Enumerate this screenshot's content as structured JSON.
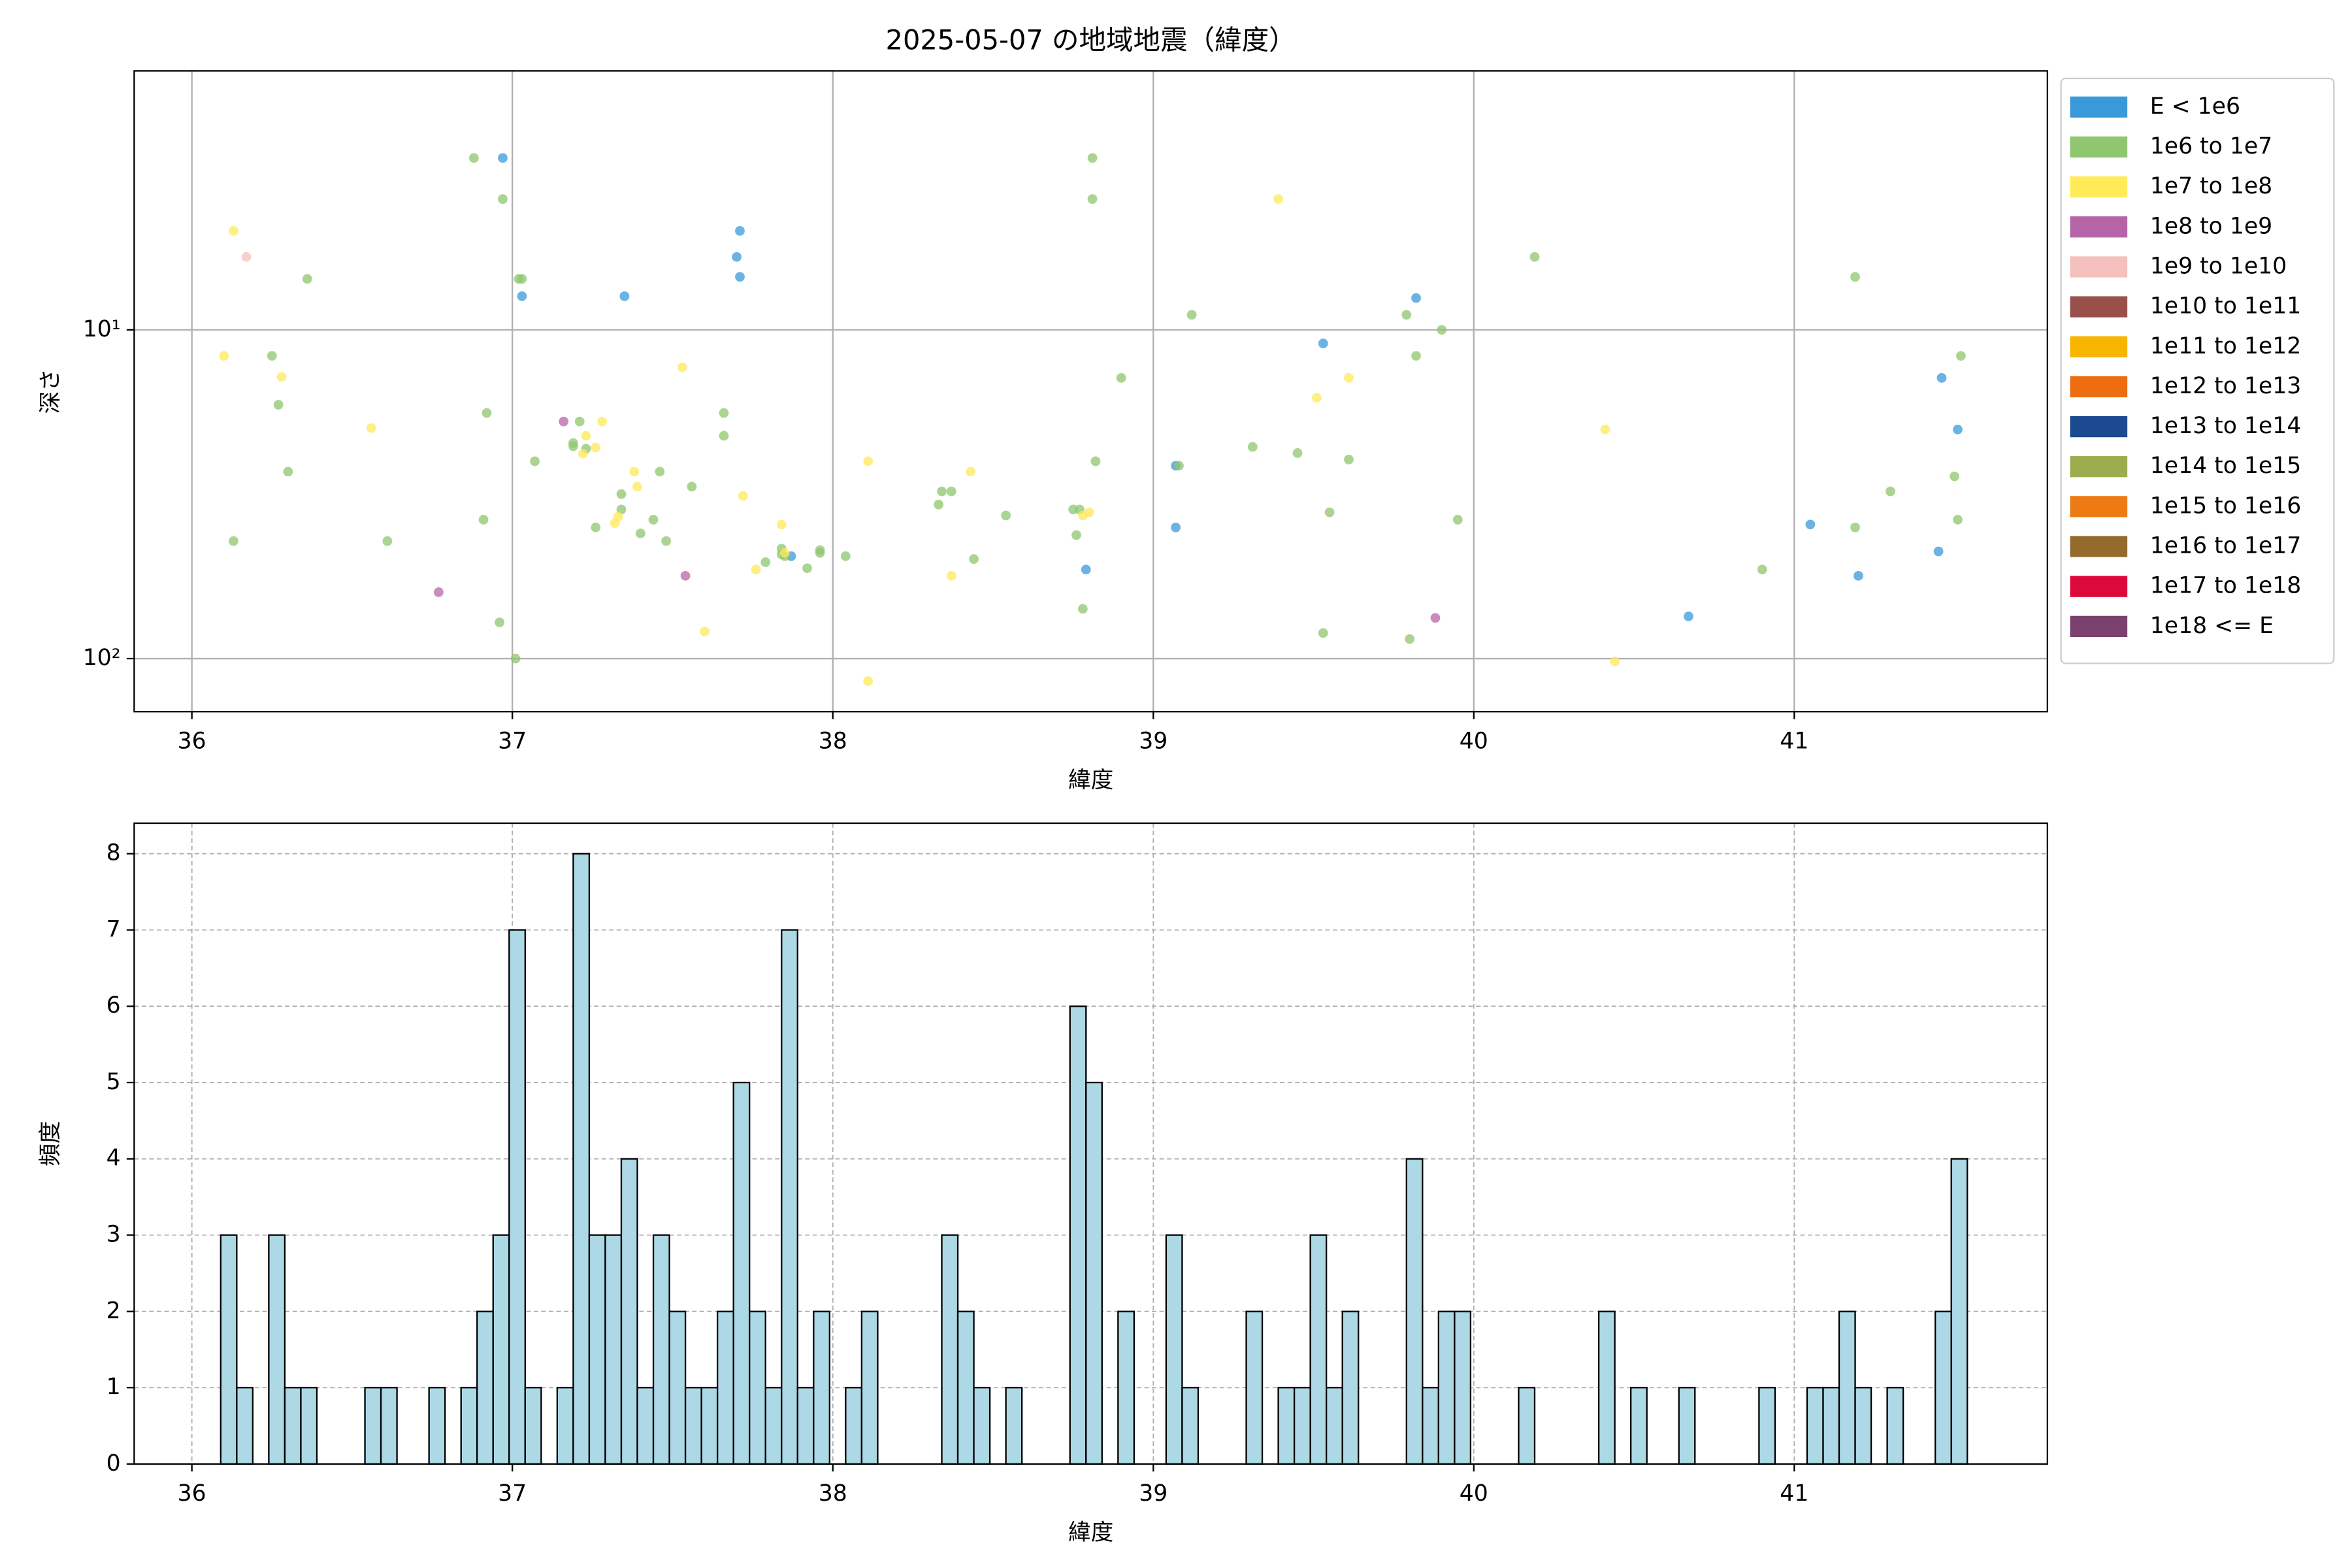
{
  "chart_data": [
    {
      "type": "scatter",
      "title": "2025-05-07 の地域地震（緯度）",
      "xlabel": "緯度",
      "ylabel": "深さ",
      "xlim": [
        35.82,
        41.79
      ],
      "xticks": [
        36,
        37,
        38,
        39,
        40,
        41
      ],
      "ylim": [
        1.63,
        145
      ],
      "yscale": "log",
      "y_inverted": true,
      "yticks": [
        {
          "value": 10,
          "label": "10¹"
        },
        {
          "value": 100,
          "label": "10²"
        }
      ],
      "grid": true,
      "legend": "outside right",
      "series": [
        {
          "name": "E < 1e6",
          "color": "#3a9ad9",
          "x": [
            36.97,
            37.03,
            37.35,
            37.71,
            37.7,
            37.71,
            37.87,
            38.79,
            39.07,
            39.07,
            39.53,
            39.82,
            40.67,
            41.05,
            41.2,
            41.45,
            41.46,
            41.51
          ],
          "values": [
            3.0,
            7.9,
            7.9,
            5.0,
            6.0,
            6.9,
            48.8,
            53.6,
            25.9,
            39.9,
            11.0,
            8.0,
            74.4,
            39.1,
            56.0,
            47.2,
            14.0,
            20.1
          ]
        },
        {
          "name": "1e6 to 1e7",
          "color": "#8fc66f",
          "x": [
            36.88,
            36.97,
            37.02,
            37.03,
            36.13,
            36.25,
            36.27,
            36.36,
            36.3,
            36.61,
            36.92,
            36.91,
            36.96,
            37.01,
            37.07,
            37.19,
            37.19,
            37.21,
            37.23,
            37.26,
            37.34,
            37.34,
            37.4,
            37.44,
            37.46,
            37.48,
            37.56,
            37.66,
            37.66,
            37.79,
            37.84,
            37.84,
            37.85,
            37.92,
            37.96,
            37.96,
            38.04,
            38.33,
            38.34,
            38.37,
            38.44,
            38.54,
            38.75,
            38.77,
            38.76,
            38.78,
            38.81,
            38.81,
            38.82,
            38.9,
            39.08,
            39.12,
            39.31,
            39.45,
            39.53,
            39.55,
            39.61,
            39.79,
            39.8,
            39.82,
            39.9,
            39.95,
            40.19,
            40.9,
            41.19,
            41.19,
            41.3,
            41.5,
            41.52,
            41.51
          ],
          "values": [
            3.0,
            4.0,
            7.0,
            7.0,
            43.9,
            12.0,
            16.9,
            7.0,
            27.0,
            43.9,
            17.9,
            37.8,
            77.6,
            100,
            25.1,
            22.1,
            22.6,
            19.0,
            23.0,
            39.9,
            35.2,
            31.6,
            41.6,
            37.8,
            27.0,
            43.9,
            30.0,
            21.0,
            17.9,
            50.9,
            46.3,
            48.2,
            48.8,
            53.1,
            47.7,
            46.8,
            48.8,
            34.0,
            31.0,
            31.0,
            49.8,
            36.7,
            35.2,
            35.2,
            42.1,
            70.6,
            3.0,
            4.0,
            25.1,
            14.0,
            25.9,
            9.0,
            22.7,
            23.7,
            83.6,
            35.9,
            24.8,
            9.0,
            87.2,
            12.0,
            10.0,
            37.8,
            6.0,
            53.6,
            6.9,
            39.9,
            31.0,
            27.9,
            12.0,
            37.8
          ]
        },
        {
          "name": "1e7 to 1e8",
          "color": "#ffea5a",
          "x": [
            36.13,
            36.1,
            36.28,
            36.56,
            37.22,
            37.23,
            37.26,
            37.28,
            37.32,
            37.33,
            37.38,
            37.39,
            37.53,
            37.6,
            37.72,
            37.76,
            37.84,
            37.85,
            38.11,
            38.11,
            38.37,
            38.43,
            38.78,
            38.8,
            39.39,
            39.51,
            39.61,
            40.41,
            40.44
          ],
          "values": [
            5.0,
            12.0,
            13.9,
            19.9,
            23.8,
            21.0,
            22.8,
            19.0,
            38.7,
            37.0,
            27.0,
            30.0,
            13.0,
            82.7,
            32.0,
            53.6,
            39.1,
            47.7,
            25.1,
            117,
            56.0,
            27.0,
            36.7,
            35.9,
            4.0,
            16.1,
            14.0,
            20.1,
            102
          ]
        },
        {
          "name": "1e8 to 1e9",
          "color": "#b565a7",
          "x": [
            37.16,
            36.77,
            37.54,
            39.88
          ],
          "values": [
            19.0,
            62.8,
            56.0,
            75.2
          ]
        },
        {
          "name": "1e9 to 1e10",
          "color": "#f4c0bd",
          "x": [
            36.17
          ],
          "values": [
            6.0
          ]
        },
        {
          "name": "1e10 to 1e11",
          "color": "#99504b",
          "x": [],
          "values": []
        },
        {
          "name": "1e11 to 1e12",
          "color": "#f8b500",
          "x": [],
          "values": []
        },
        {
          "name": "1e12 to 1e13",
          "color": "#ed6d10",
          "x": [],
          "values": []
        },
        {
          "name": "1e13 to 1e14",
          "color": "#1c4a90",
          "x": [],
          "values": []
        },
        {
          "name": "1e14 to 1e15",
          "color": "#9cad50",
          "x": [],
          "values": []
        },
        {
          "name": "1e15 to 1e16",
          "color": "#ee7a14",
          "x": [],
          "values": []
        },
        {
          "name": "1e16 to 1e17",
          "color": "#946b2d",
          "x": [],
          "values": []
        },
        {
          "name": "1e17 to 1e18",
          "color": "#dc0a3c",
          "x": [],
          "values": []
        },
        {
          "name": "1e18 <= E",
          "color": "#7a416e",
          "x": [],
          "values": []
        }
      ]
    },
    {
      "type": "histogram",
      "xlabel": "緯度",
      "ylabel": "頻度",
      "color": "#add8e6",
      "edgecolor": "#000000",
      "xlim": [
        35.82,
        41.79
      ],
      "xticks": [
        36,
        37,
        38,
        39,
        40,
        41
      ],
      "ylim": [
        0,
        8.4
      ],
      "yticks": [
        0,
        1,
        2,
        3,
        4,
        5,
        6,
        7,
        8
      ],
      "grid": "dashed",
      "bins": [
        36.09,
        36.14,
        36.19,
        36.24,
        36.29,
        36.34,
        36.39,
        36.44,
        36.49,
        36.54,
        36.59,
        36.64,
        36.69,
        36.74,
        36.79,
        36.84,
        36.89,
        36.94,
        36.99,
        37.04,
        37.09,
        37.14,
        37.19,
        37.24,
        37.29,
        37.34,
        37.39,
        37.44,
        37.49,
        37.54,
        37.59,
        37.64,
        37.69,
        37.74,
        37.79,
        37.84,
        37.89,
        37.94,
        37.99,
        38.04,
        38.09,
        38.14,
        38.19,
        38.24,
        38.29,
        38.34,
        38.39,
        38.44,
        38.49,
        38.54,
        38.59,
        38.64,
        38.69,
        38.74,
        38.79,
        38.84,
        38.89,
        38.94,
        38.99,
        39.04,
        39.09,
        39.14,
        39.19,
        39.24,
        39.29,
        39.34,
        39.39,
        39.44,
        39.49,
        39.54,
        39.59,
        39.64,
        39.69,
        39.74,
        39.79,
        39.84,
        39.89,
        39.94,
        39.99,
        40.04,
        40.09,
        40.14,
        40.19,
        40.24,
        40.29,
        40.34,
        40.39,
        40.44,
        40.49,
        40.54,
        40.59,
        40.64,
        40.69,
        40.74,
        40.79,
        40.84,
        40.89,
        40.94,
        40.99,
        41.04,
        41.09,
        41.14,
        41.19,
        41.24,
        41.29,
        41.34,
        41.39,
        41.44,
        41.49,
        41.54
      ],
      "values": [
        3,
        1,
        0,
        3,
        1,
        1,
        0,
        0,
        0,
        1,
        1,
        0,
        0,
        1,
        0,
        1,
        2,
        3,
        7,
        1,
        0,
        1,
        8,
        3,
        3,
        4,
        1,
        3,
        2,
        1,
        1,
        2,
        5,
        2,
        1,
        7,
        1,
        2,
        0,
        1,
        2,
        0,
        0,
        0,
        0,
        3,
        2,
        1,
        0,
        1,
        0,
        0,
        0,
        6,
        5,
        0,
        2,
        0,
        0,
        3,
        1,
        0,
        0,
        0,
        2,
        0,
        1,
        1,
        3,
        1,
        2,
        0,
        0,
        0,
        4,
        1,
        2,
        2,
        0,
        0,
        0,
        1,
        0,
        0,
        0,
        0,
        2,
        0,
        1,
        0,
        0,
        1,
        0,
        0,
        0,
        0,
        1,
        0,
        0,
        1,
        1,
        2,
        1,
        0,
        1,
        0,
        0,
        2,
        4
      ]
    }
  ]
}
